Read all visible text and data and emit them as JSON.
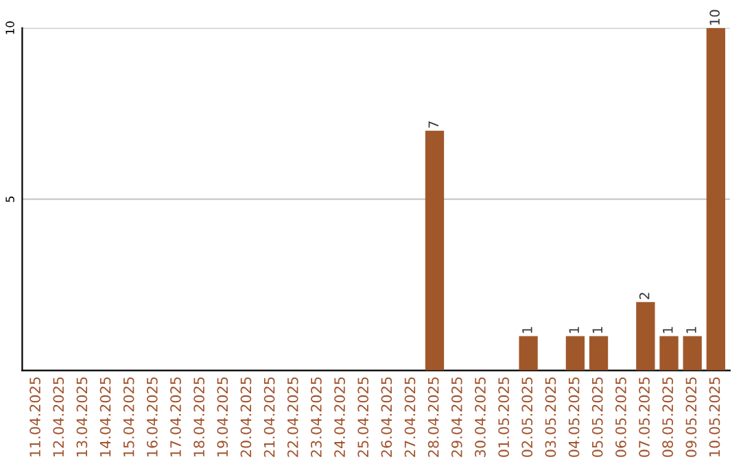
{
  "chart_data": {
    "type": "bar",
    "categories": [
      "11.04.2025",
      "12.04.2025",
      "13.04.2025",
      "14.04.2025",
      "15.04.2025",
      "16.04.2025",
      "17.04.2025",
      "18.04.2025",
      "19.04.2025",
      "20.04.2025",
      "21.04.2025",
      "22.04.2025",
      "23.04.2025",
      "24.04.2025",
      "25.04.2025",
      "26.04.2025",
      "27.04.2025",
      "28.04.2025",
      "29.04.2025",
      "30.04.2025",
      "01.05.2025",
      "02.05.2025",
      "03.05.2025",
      "04.05.2025",
      "05.05.2025",
      "06.05.2025",
      "07.05.2025",
      "08.05.2025",
      "09.05.2025",
      "10.05.2025"
    ],
    "values": [
      0,
      0,
      0,
      0,
      0,
      0,
      0,
      0,
      0,
      0,
      0,
      0,
      0,
      0,
      0,
      0,
      0,
      7,
      0,
      0,
      0,
      1,
      0,
      1,
      1,
      0,
      2,
      1,
      1,
      10
    ],
    "value_labels": [
      null,
      null,
      null,
      null,
      null,
      null,
      null,
      null,
      null,
      null,
      null,
      null,
      null,
      null,
      null,
      null,
      null,
      "7",
      null,
      null,
      null,
      "1",
      null,
      "1",
      "1",
      null,
      "2",
      "1",
      "1",
      "10"
    ],
    "color": "#a0582a",
    "ylim": [
      0,
      10
    ],
    "yticks": [
      {
        "value": 0,
        "label": null
      },
      5,
      10
    ],
    "grid": "y"
  }
}
